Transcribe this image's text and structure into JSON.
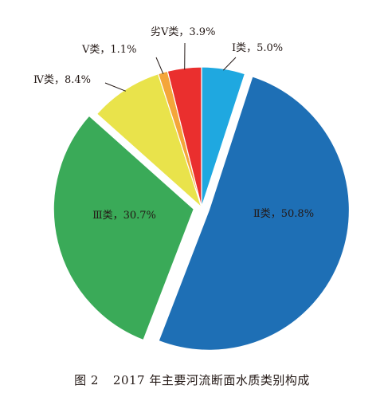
{
  "chart_data": {
    "type": "pie",
    "title": "",
    "start": "12 o'clock, clockwise",
    "slices": [
      {
        "label": "Ⅰ类",
        "value": 5.0,
        "text": "Ⅰ类，5.0%",
        "color": "#1fa8e0",
        "label_position": "outside"
      },
      {
        "label": "Ⅱ类",
        "value": 50.8,
        "text": "Ⅱ类，50.8%",
        "color": "#1e6fb5",
        "label_position": "inside",
        "exploded": true
      },
      {
        "label": "Ⅲ类",
        "value": 30.7,
        "text": "Ⅲ类，30.7%",
        "color": "#3aaa58",
        "label_position": "inside",
        "exploded": true
      },
      {
        "label": "Ⅳ类",
        "value": 8.4,
        "text": "Ⅳ类，8.4%",
        "color": "#e9e34b",
        "label_position": "outside"
      },
      {
        "label": "Ⅴ类",
        "value": 1.1,
        "text": "Ⅴ类，1.1%",
        "color": "#f4a63a",
        "label_position": "outside"
      },
      {
        "label": "劣Ⅴ类",
        "value": 3.9,
        "text": "劣Ⅴ类，3.9%",
        "color": "#ea2f2e",
        "label_position": "outside"
      }
    ]
  },
  "caption": {
    "number": "图 2",
    "text": "2017 年主要河流断面水质类别构成"
  }
}
